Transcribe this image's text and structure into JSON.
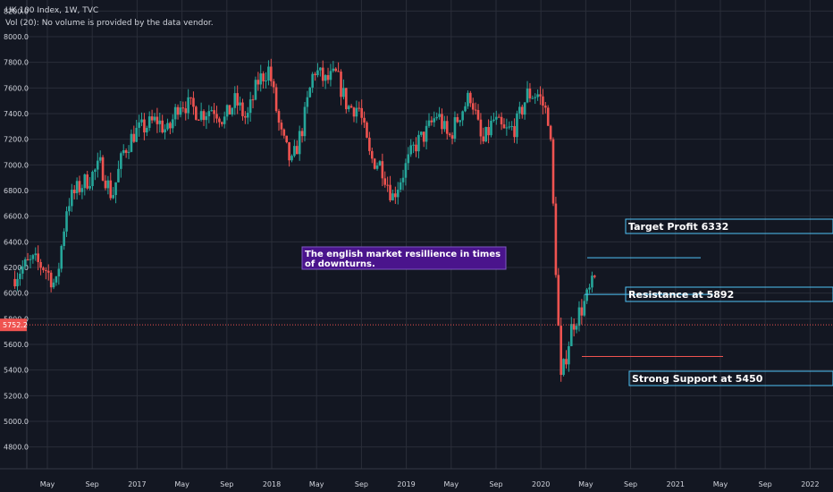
{
  "header": {
    "symbol_line": "UK 100 Index, 1W, TVC",
    "volume_note": "Vol (20): No volume is provided by the data vendor."
  },
  "colors": {
    "background": "#131722",
    "grid": "#2a2e39",
    "axis_text": "#d1d4dc",
    "up": "#26a69a",
    "down": "#ef5350",
    "level_line": "#4fc3f7",
    "price_line": "#ef5350",
    "annotation_fill": "#4a148c",
    "annotation_border": "#7e57c2"
  },
  "chart_data": {
    "type": "candlestick",
    "title": "UK 100 Index, 1W, TVC",
    "ylim": [
      4650,
      8250
    ],
    "y_ticks": [
      4800,
      5000,
      5200,
      5400,
      5600,
      5800,
      6000,
      6200,
      6400,
      6600,
      6800,
      7000,
      7200,
      7400,
      7600,
      7800,
      8000,
      8200
    ],
    "x_ticks": [
      {
        "date": "2016-05",
        "label": "May"
      },
      {
        "date": "2016-09",
        "label": "Sep"
      },
      {
        "date": "2017-01",
        "label": "2017"
      },
      {
        "date": "2017-05",
        "label": "May"
      },
      {
        "date": "2017-09",
        "label": "Sep"
      },
      {
        "date": "2018-01",
        "label": "2018"
      },
      {
        "date": "2018-05",
        "label": "May"
      },
      {
        "date": "2018-09",
        "label": "Sep"
      },
      {
        "date": "2019-01",
        "label": "2019"
      },
      {
        "date": "2019-05",
        "label": "May"
      },
      {
        "date": "2019-09",
        "label": "Sep"
      },
      {
        "date": "2020-01",
        "label": "2020"
      },
      {
        "date": "2020-05",
        "label": "May"
      },
      {
        "date": "2020-09",
        "label": "Sep"
      },
      {
        "date": "2021-01",
        "label": "2021"
      },
      {
        "date": "2021-05",
        "label": "May"
      },
      {
        "date": "2021-09",
        "label": "Sep"
      },
      {
        "date": "2022-01",
        "label": "2022"
      }
    ],
    "price_path": [
      [
        "2016-02",
        6100
      ],
      [
        "2016-03",
        6200
      ],
      [
        "2016-04",
        6250
      ],
      [
        "2016-05",
        6200
      ],
      [
        "2016-06",
        6050
      ],
      [
        "2016-07",
        6700
      ],
      [
        "2016-08",
        6820
      ],
      [
        "2016-09",
        6900
      ],
      [
        "2016-10",
        7000
      ],
      [
        "2016-11",
        6750
      ],
      [
        "2016-12",
        7100
      ],
      [
        "2017-01",
        7250
      ],
      [
        "2017-02",
        7300
      ],
      [
        "2017-03",
        7350
      ],
      [
        "2017-04",
        7250
      ],
      [
        "2017-05",
        7500
      ],
      [
        "2017-06",
        7450
      ],
      [
        "2017-07",
        7400
      ],
      [
        "2017-08",
        7450
      ],
      [
        "2017-09",
        7350
      ],
      [
        "2017-10",
        7500
      ],
      [
        "2017-11",
        7350
      ],
      [
        "2017-12",
        7650
      ],
      [
        "2018-01",
        7750
      ],
      [
        "2018-02",
        7250
      ],
      [
        "2018-03",
        7000
      ],
      [
        "2018-04",
        7300
      ],
      [
        "2018-05",
        7750
      ],
      [
        "2018-06",
        7650
      ],
      [
        "2018-07",
        7700
      ],
      [
        "2018-08",
        7450
      ],
      [
        "2018-09",
        7450
      ],
      [
        "2018-10",
        7050
      ],
      [
        "2018-11",
        7000
      ],
      [
        "2018-12",
        6750
      ],
      [
        "2019-01",
        6950
      ],
      [
        "2019-02",
        7150
      ],
      [
        "2019-03",
        7250
      ],
      [
        "2019-04",
        7400
      ],
      [
        "2019-05",
        7200
      ],
      [
        "2019-06",
        7400
      ],
      [
        "2019-07",
        7550
      ],
      [
        "2019-08",
        7150
      ],
      [
        "2019-09",
        7350
      ],
      [
        "2019-10",
        7250
      ],
      [
        "2019-11",
        7300
      ],
      [
        "2019-12",
        7550
      ],
      [
        "2020-01",
        7550
      ],
      [
        "2020-02",
        7350
      ],
      [
        "2020-03",
        5300
      ],
      [
        "2020-04",
        5750
      ],
      [
        "2020-05",
        5900
      ],
      [
        "2020-06",
        6100
      ]
    ],
    "current_price": {
      "value": 5752.2,
      "label": "5752.2"
    }
  },
  "levels": [
    {
      "name": "target-profit",
      "label": "Target Profit 6332",
      "value": 6332
    },
    {
      "name": "resistance",
      "label": "Resistance at 5892",
      "value": 5892
    },
    {
      "name": "strong-support",
      "label": "Strong Support at 5450",
      "value": 5450
    }
  ],
  "annotation": {
    "text_line1": "The english market resillience in times",
    "text_line2": "of downturns."
  }
}
